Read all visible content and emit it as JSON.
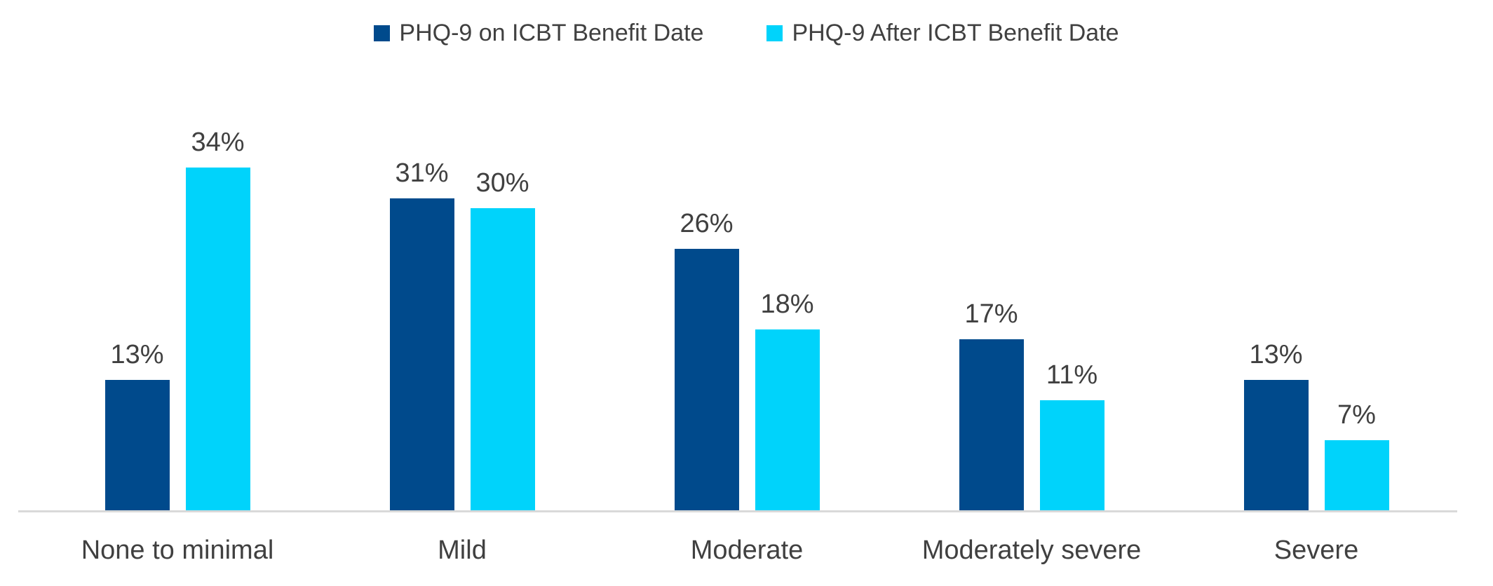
{
  "chart_data": {
    "type": "bar",
    "title": "",
    "xlabel": "",
    "ylabel": "",
    "categories": [
      "None to minimal",
      "Mild",
      "Moderate",
      "Moderately severe",
      "Severe"
    ],
    "series": [
      {
        "name": "PHQ-9 on ICBT Benefit Date",
        "color": "#004A8C",
        "values": [
          13,
          31,
          26,
          17,
          13
        ],
        "labels": [
          "13%",
          "31%",
          "26%",
          "17%",
          "13%"
        ]
      },
      {
        "name": "PHQ-9 After ICBT Benefit Date",
        "color": "#00D3FB",
        "values": [
          34,
          30,
          18,
          11,
          7
        ],
        "labels": [
          "34%",
          "30%",
          "18%",
          "11%",
          "7%"
        ]
      }
    ],
    "value_unit": "%",
    "ylim": [
      0,
      34
    ],
    "grid": false,
    "y_axis_visible": false,
    "legend_position": "top"
  },
  "style": {
    "label_color": "#404040",
    "axis_line_color": "#D9D9D9",
    "background": "#FFFFFF"
  }
}
